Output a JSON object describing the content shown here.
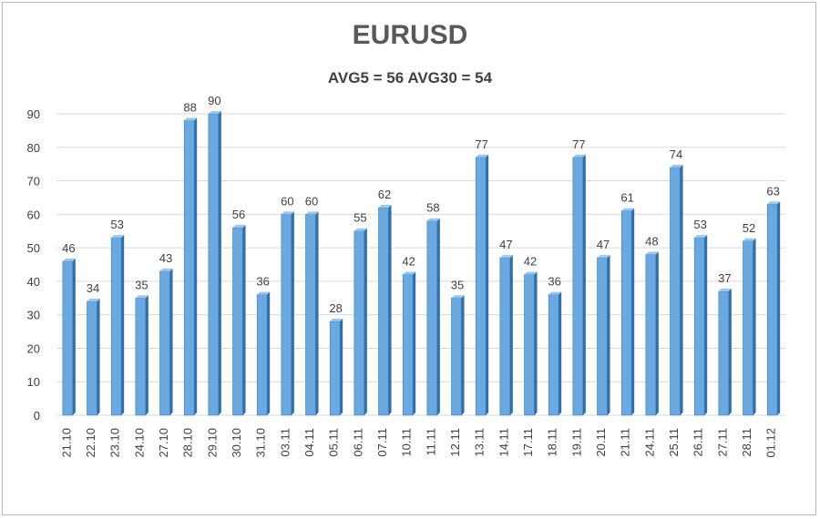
{
  "chart_data": {
    "type": "bar",
    "title": "EURUSD",
    "subtitle": "AVG5 = 56 AVG30 = 54",
    "categories": [
      "21.10",
      "22.10",
      "23.10",
      "24.10",
      "27.10",
      "28.10",
      "29.10",
      "30.10",
      "31.10",
      "03.11",
      "04.11",
      "05.11",
      "06.11",
      "07.11",
      "10.11",
      "11.11",
      "12.11",
      "13.11",
      "14.11",
      "17.11",
      "18.11",
      "19.11",
      "20.11",
      "21.11",
      "24.11",
      "25.11",
      "26.11",
      "27.11",
      "28.11",
      "01.12"
    ],
    "values": [
      46,
      34,
      53,
      35,
      43,
      88,
      90,
      56,
      36,
      60,
      60,
      28,
      55,
      62,
      42,
      58,
      35,
      77,
      47,
      42,
      36,
      77,
      47,
      61,
      48,
      74,
      53,
      37,
      52,
      63
    ],
    "ylim": [
      0,
      90
    ],
    "yticks": [
      0,
      10,
      20,
      30,
      40,
      50,
      60,
      70,
      80,
      90
    ],
    "grid": true,
    "legend": "none",
    "colors": {
      "bar_front": "#6aa9e0",
      "bar_side": "#2f6ea8",
      "bar_top": "#9cc6ec",
      "grid": "#d9d9d9"
    }
  }
}
